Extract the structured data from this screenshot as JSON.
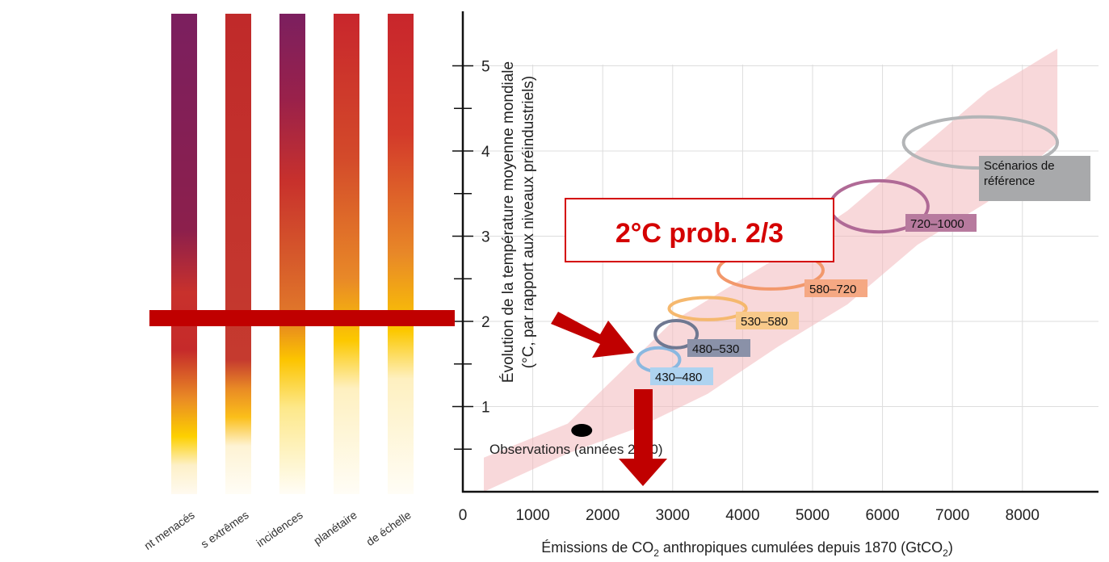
{
  "chart_data": {
    "type": "scatter",
    "ylabel_line1": "Évolution de la température moyenne mondiale",
    "ylabel_line2": "(°C, par rapport aux niveaux préindustriels)",
    "xlabel_parts": [
      "Émissions de CO",
      "2",
      " anthropiques cumulées depuis 1870 (GtCO",
      "2",
      ")"
    ],
    "xlim": [
      0,
      9000
    ],
    "ylim": [
      0,
      5.4
    ],
    "x_ticks": [
      0,
      1000,
      2000,
      3000,
      4000,
      5000,
      6000,
      7000,
      8000
    ],
    "y_ticks": [
      1,
      2,
      3,
      4,
      5
    ],
    "y_minor_ticks": [
      0.5,
      1.5,
      2.5,
      3.5,
      4.5
    ],
    "grid": true,
    "band": {
      "upper": [
        [
          300,
          0.4
        ],
        [
          1500,
          0.8
        ],
        [
          3000,
          2.0
        ],
        [
          4500,
          2.75
        ],
        [
          5500,
          3.3
        ],
        [
          6500,
          4.0
        ],
        [
          7500,
          4.7
        ],
        [
          8500,
          5.2
        ]
      ],
      "lower": [
        [
          8500,
          4.1
        ],
        [
          7500,
          3.4
        ],
        [
          6500,
          2.9
        ],
        [
          5500,
          2.2
        ],
        [
          4500,
          1.7
        ],
        [
          3500,
          1.15
        ],
        [
          2500,
          0.75
        ],
        [
          1500,
          0.45
        ],
        [
          300,
          0.0
        ]
      ]
    },
    "observation": {
      "x": 1700,
      "y": 0.72,
      "label": "Observations (années 2000)"
    },
    "series": [
      {
        "name": "430–480",
        "cx": 2800,
        "cy": 1.55,
        "rx": 300,
        "ry": 0.14,
        "color": "#8ab8e0",
        "label_bg": "#aed3f0"
      },
      {
        "name": "480–530",
        "cx": 3050,
        "cy": 1.85,
        "rx": 300,
        "ry": 0.16,
        "color": "#6f7891",
        "label_bg": "#8a91a8"
      },
      {
        "name": "530–580",
        "cx": 3500,
        "cy": 2.15,
        "rx": 550,
        "ry": 0.13,
        "color": "#f5b86e",
        "label_bg": "#f8c98a"
      },
      {
        "name": "580–720",
        "cx": 4400,
        "cy": 2.6,
        "rx": 750,
        "ry": 0.22,
        "color": "#f2986b",
        "label_bg": "#f5a883"
      },
      {
        "name": "720–1000",
        "cx": 5950,
        "cy": 3.35,
        "rx": 700,
        "ry": 0.3,
        "color": "#b06a96",
        "label_bg": "#b77a9e"
      },
      {
        "name": "Scénarios de référence",
        "label_lines": [
          "Scénarios de",
          "référence"
        ],
        "cx": 7400,
        "cy": 4.1,
        "rx": 1100,
        "ry": 0.3,
        "color": "#b3b5b7",
        "label_bg": "#a8a9ab"
      }
    ]
  },
  "risk_bars": {
    "labels": [
      "nt menacés",
      "s extrêmes",
      "incidences",
      "planétaire",
      "de échelle"
    ]
  },
  "overlay": {
    "callout": "2°C prob. 2/3",
    "line_color": "#c00000",
    "arrow_color": "#c00000"
  }
}
